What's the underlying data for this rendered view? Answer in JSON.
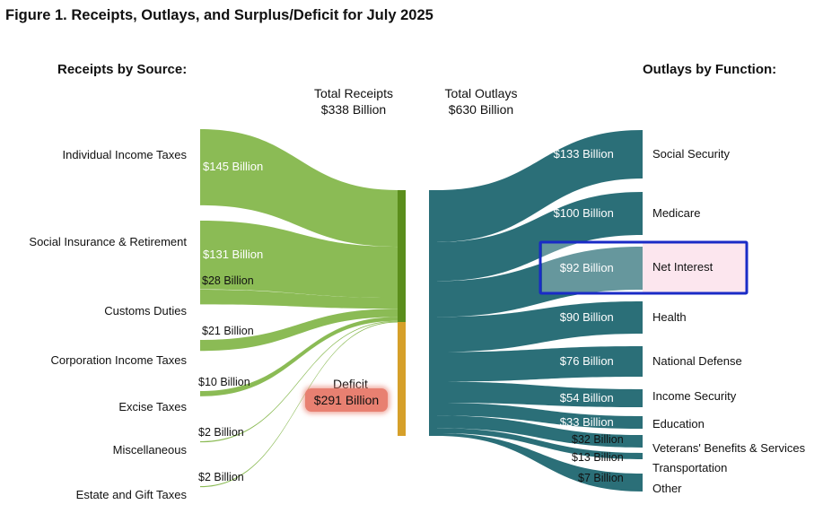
{
  "figure": {
    "title": "Figure 1. Receipts, Outlays, and Surplus/Deficit for July 2025",
    "receipts_heading": "Receipts by Source:",
    "outlays_heading": "Outlays by Function:",
    "total_receipts": {
      "label": "Total Receipts",
      "value": "$338 Billion"
    },
    "total_outlays": {
      "label": "Total Outlays",
      "value": "$630 Billion"
    },
    "deficit": {
      "label": "Deficit",
      "value": "$291 Billion"
    }
  },
  "colors": {
    "receipts_green": "#8bbb55",
    "receipts_bar": "#5b8e1c",
    "deficit_bar": "#d6a02a",
    "outlays_teal": "#2b6f78",
    "deficit_badge": "#e88071",
    "highlight_border": "#1a2bc6",
    "highlight_fill": "#fce6ee"
  },
  "chart_data": {
    "type": "sankey",
    "sources": [
      {
        "name": "Individual Income Taxes",
        "value": 145,
        "label": "$145 Billion"
      },
      {
        "name": "Social Insurance & Retirement",
        "value": 131,
        "label": "$131 Billion"
      },
      {
        "name": "Customs Duties",
        "value": 28,
        "label": "$28 Billion"
      },
      {
        "name": "Corporation Income Taxes",
        "value": 21,
        "label": "$21 Billion"
      },
      {
        "name": "Excise Taxes",
        "value": 10,
        "label": "$10 Billion"
      },
      {
        "name": "Miscellaneous",
        "value": 2,
        "label": "$2 Billion"
      },
      {
        "name": "Estate and Gift Taxes",
        "value": 2,
        "label": "$2 Billion"
      }
    ],
    "outlays": [
      {
        "name": "Social Security",
        "value": 133,
        "label": "$133 Billion"
      },
      {
        "name": "Medicare",
        "value": 100,
        "label": "$100 Billion"
      },
      {
        "name": "Net Interest",
        "value": 92,
        "label": "$92 Billion",
        "highlighted": true
      },
      {
        "name": "Health",
        "value": 90,
        "label": "$90 Billion"
      },
      {
        "name": "National Defense",
        "value": 76,
        "label": "$76 Billion"
      },
      {
        "name": "Income Security",
        "value": 54,
        "label": "$54 Billion"
      },
      {
        "name": "Education",
        "value": 33,
        "label": "$33 Billion"
      },
      {
        "name": "Veterans' Benefits & Services",
        "value": 32,
        "label": "$32 Billion"
      },
      {
        "name": "Transportation",
        "value": 13,
        "label": "$13 Billion"
      },
      {
        "name": "Other",
        "value": 7,
        "label": "$7 Billion"
      }
    ],
    "total_receipts": 338,
    "total_outlays": 630,
    "deficit": 291
  }
}
